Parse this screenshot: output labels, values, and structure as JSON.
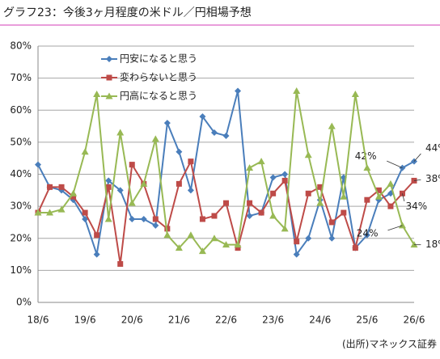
{
  "chart_data": {
    "type": "line",
    "title": "グラフ23：今後3ヶ月程度の米ドル／円相場予想",
    "source": "(出所)マネックス証券",
    "categories": [
      "18/6",
      null,
      null,
      null,
      "19/6",
      null,
      null,
      null,
      "20/6",
      null,
      null,
      null,
      "21/6",
      null,
      null,
      null,
      "22/6",
      null,
      null,
      null,
      "23/6",
      null,
      null,
      null,
      "24/6",
      null,
      null,
      null,
      "25/6",
      null,
      null,
      null,
      "26/6"
    ],
    "series": [
      {
        "name": "円安になると思う",
        "color": "#4a7ebb",
        "marker": "diamond",
        "values": [
          43,
          36,
          35,
          32,
          26,
          15,
          38,
          35,
          26,
          26,
          24,
          56,
          47,
          35,
          58,
          53,
          52,
          66,
          27,
          28,
          39,
          40,
          15,
          20,
          32,
          20,
          39,
          17,
          21,
          32,
          34,
          42,
          44
        ],
        "value_labels": [
          null,
          null,
          null,
          null,
          null,
          null,
          null,
          null,
          null,
          null,
          null,
          null,
          null,
          null,
          null,
          null,
          null,
          null,
          null,
          null,
          null,
          null,
          null,
          null,
          null,
          null,
          null,
          null,
          null,
          null,
          null,
          "42%",
          "44%"
        ]
      },
      {
        "name": "変わらないと思う",
        "color": "#be4b48",
        "marker": "square",
        "values": [
          28,
          36,
          36,
          33,
          28,
          21,
          36,
          12,
          43,
          37,
          26,
          23,
          37,
          44,
          26,
          27,
          31,
          17,
          31,
          28,
          34,
          38,
          19,
          34,
          36,
          25,
          28,
          17,
          32,
          35,
          30,
          34,
          38
        ],
        "value_labels": [
          null,
          null,
          null,
          null,
          null,
          null,
          null,
          null,
          null,
          null,
          null,
          null,
          null,
          null,
          null,
          null,
          null,
          null,
          null,
          null,
          null,
          null,
          null,
          null,
          null,
          null,
          null,
          null,
          null,
          null,
          null,
          "34%",
          "38%"
        ]
      },
      {
        "name": "円高になると思う",
        "color": "#98b954",
        "marker": "triangle",
        "values": [
          28,
          28,
          29,
          34,
          47,
          65,
          26,
          53,
          31,
          37,
          51,
          21,
          17,
          21,
          16,
          20,
          18,
          18,
          42,
          44,
          27,
          23,
          66,
          46,
          31,
          55,
          33,
          65,
          42,
          33,
          37,
          24,
          18
        ],
        "value_labels": [
          null,
          null,
          null,
          null,
          null,
          null,
          null,
          null,
          null,
          null,
          null,
          null,
          null,
          null,
          null,
          null,
          null,
          null,
          null,
          null,
          null,
          null,
          null,
          null,
          null,
          null,
          null,
          null,
          null,
          null,
          null,
          "24%",
          "18%"
        ]
      }
    ],
    "ylim": [
      0,
      80
    ],
    "yticks": [
      {
        "value": 0,
        "label": "0%"
      },
      {
        "value": 10,
        "label": "10%"
      },
      {
        "value": 20,
        "label": "20%"
      },
      {
        "value": 30,
        "label": "30%"
      },
      {
        "value": 40,
        "label": "40%"
      },
      {
        "value": 50,
        "label": "50%"
      },
      {
        "value": 60,
        "label": "60%"
      },
      {
        "value": 70,
        "label": "70%"
      },
      {
        "value": 80,
        "label": "80%"
      }
    ],
    "grid": true
  }
}
